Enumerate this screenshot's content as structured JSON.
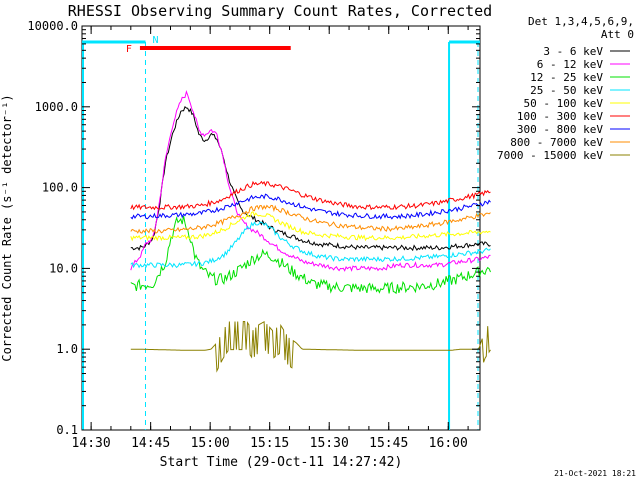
{
  "chart_data": {
    "type": "line",
    "title": "RHESSI Observing Summary Count Rates, Corrected",
    "xlabel": "Start Time (29-Oct-11 14:27:42)",
    "ylabel": "Corrected Count Rate (s⁻¹ detector⁻¹)",
    "y_scale": "log",
    "ylim": [
      0.1,
      10000
    ],
    "xlim": [
      "14:27:42",
      "16:08:00"
    ],
    "x_ticks": [
      "14:30",
      "14:45",
      "15:00",
      "15:15",
      "15:30",
      "15:45",
      "16:00"
    ],
    "x_tick_minutes": [
      2.3,
      17.3,
      32.3,
      47.3,
      62.3,
      77.3,
      92.3
    ],
    "y_tick_values": [
      0.1,
      1,
      10,
      100,
      1000,
      10000
    ],
    "y_ticks": [
      "0.1",
      "1.0",
      "10.0",
      "100.0",
      "1000.0",
      "10000.0"
    ],
    "legend_header": [
      "Det 1,3,4,5,6,9,",
      "Att 0"
    ],
    "legend_position": "right",
    "grid": false,
    "x_unit_note": "x values are minutes after 14:27:42",
    "flags": {
      "flare_label": "F",
      "flare_span": [
        14.6,
        52.6
      ],
      "flare_color": "#ff0000",
      "night_label": "N",
      "night_spans": [
        [
          0.0,
          16.0
        ],
        [
          92.5,
          108.5
        ]
      ],
      "night_color": "#00e5ff",
      "saa_dashed_lines": [
        16.0,
        108.5
      ]
    },
    "series": [
      {
        "name": "3 - 6 keV",
        "color": "#000000",
        "x": [
          12.3,
          13.5,
          14.6,
          16.0,
          18.0,
          19.5,
          21.0,
          23.0,
          25.0,
          26.5,
          28.0,
          29.5,
          31.0,
          32.5,
          34.0,
          35.5,
          37.0,
          38.5,
          40.0,
          42.0,
          44.0,
          47.0,
          50.0,
          53.0,
          56.0,
          60.0,
          65.0,
          70.0,
          75.0,
          80.0,
          85.0,
          90.0,
          95.0,
          100.0,
          103.0
        ],
        "y": [
          18,
          18,
          18,
          19,
          24,
          60,
          200,
          500,
          900,
          1000,
          800,
          450,
          380,
          460,
          400,
          250,
          130,
          80,
          55,
          45,
          40,
          33,
          28,
          25,
          22,
          20,
          19,
          18,
          18,
          18,
          18,
          18,
          19,
          20,
          20
        ]
      },
      {
        "name": "6 - 12 keV",
        "color": "#ff00ff",
        "x": [
          12.3,
          14.0,
          15.0,
          16.0,
          18.0,
          19.5,
          21.0,
          23.0,
          25.0,
          26.5,
          28.0,
          29.5,
          31.0,
          32.5,
          34.0,
          35.5,
          37.0,
          38.5,
          40.0,
          42.0,
          44.0,
          46.0,
          48.0,
          50.0,
          53.0,
          56.0,
          60.0,
          65.0,
          70.0,
          75.0,
          80.0,
          85.0,
          90.0,
          95.0,
          100.0,
          103.0
        ],
        "y": [
          10,
          13,
          15,
          20,
          24,
          65,
          220,
          650,
          1200,
          1500,
          900,
          500,
          450,
          520,
          460,
          250,
          110,
          60,
          40,
          32,
          28,
          24,
          20,
          17,
          14,
          12,
          11,
          10,
          10,
          10,
          11,
          11,
          11,
          12,
          13,
          14
        ]
      },
      {
        "name": "12 - 25 keV",
        "color": "#00e000",
        "x": [
          12.3,
          15.0,
          18.0,
          19.5,
          21.0,
          22.5,
          24.0,
          25.5,
          27.0,
          28.5,
          30.0,
          32.0,
          34.0,
          36.0,
          38.0,
          40.0,
          42.0,
          44.0,
          46.0,
          48.0,
          50.0,
          52.0,
          54.0,
          56.0,
          58.0,
          62.0,
          66.0,
          70.0,
          75.0,
          80.0,
          85.0,
          90.0,
          95.0,
          100.0,
          103.0
        ],
        "y": [
          6,
          6.2,
          6.5,
          9,
          12,
          25,
          38,
          40,
          28,
          14,
          10,
          8,
          7.2,
          7.5,
          8.5,
          10,
          12,
          14,
          15,
          14,
          12,
          10,
          8.5,
          7.5,
          6.5,
          6,
          5.8,
          5.7,
          5.6,
          5.8,
          6,
          6.5,
          7.5,
          9,
          10
        ]
      },
      {
        "name": "25 - 50 keV",
        "color": "#00e5ff",
        "x": [
          12.3,
          16.0,
          20.0,
          25.0,
          30.0,
          33.0,
          36.0,
          38.0,
          40.0,
          42.0,
          44.0,
          46.0,
          48.0,
          50.0,
          53.0,
          56.0,
          60.0,
          65.0,
          70.0,
          75.0,
          80.0,
          85.0,
          90.0,
          95.0,
          100.0,
          103.0
        ],
        "y": [
          11,
          11,
          11,
          11,
          11.5,
          12.5,
          15,
          19,
          25,
          33,
          37,
          35,
          30,
          24,
          19,
          16,
          14,
          13,
          13,
          13,
          13.2,
          13.5,
          14,
          15,
          16,
          17
        ]
      },
      {
        "name": "50 - 100 keV",
        "color": "#ffff00",
        "x": [
          12.3,
          16.0,
          20.0,
          25.0,
          30.0,
          33.0,
          36.0,
          39.0,
          42.0,
          44.0,
          46.0,
          48.0,
          50.0,
          53.0,
          56.0,
          60.0,
          65.0,
          70.0,
          75.0,
          80.0,
          85.0,
          90.0,
          95.0,
          100.0,
          103.0
        ],
        "y": [
          24,
          24,
          24,
          24,
          25,
          27,
          31,
          38,
          46,
          48,
          46,
          42,
          37,
          32,
          28,
          26,
          25,
          24,
          24,
          24,
          25,
          26,
          27,
          28,
          29
        ]
      },
      {
        "name": "100 - 300 keV",
        "color": "#ff0000",
        "x": [
          12.3,
          16.0,
          20.0,
          25.0,
          30.0,
          35.0,
          40.0,
          43.0,
          46.0,
          49.0,
          52.0,
          56.0,
          60.0,
          65.0,
          70.0,
          75.0,
          80.0,
          85.0,
          90.0,
          95.0,
          100.0,
          103.0
        ],
        "y": [
          57,
          57,
          57,
          58,
          60,
          70,
          95,
          110,
          112,
          106,
          95,
          80,
          70,
          62,
          58,
          57,
          58,
          60,
          65,
          73,
          82,
          90
        ]
      },
      {
        "name": "300 - 800 keV",
        "color": "#0000ff",
        "x": [
          12.3,
          16.0,
          20.0,
          25.0,
          30.0,
          35.0,
          40.0,
          43.0,
          46.0,
          49.0,
          52.0,
          56.0,
          60.0,
          65.0,
          70.0,
          75.0,
          80.0,
          85.0,
          90.0,
          95.0,
          100.0,
          103.0
        ],
        "y": [
          44,
          44,
          45,
          46,
          48,
          55,
          67,
          75,
          78,
          74,
          66,
          57,
          51,
          47,
          45,
          44,
          44,
          46,
          50,
          55,
          62,
          68
        ]
      },
      {
        "name": "800 - 7000 keV",
        "color": "#ff8c00",
        "x": [
          12.3,
          16.0,
          20.0,
          25.0,
          30.0,
          35.0,
          40.0,
          43.0,
          46.0,
          49.0,
          52.0,
          56.0,
          60.0,
          65.0,
          70.0,
          75.0,
          80.0,
          85.0,
          90.0,
          95.0,
          100.0,
          103.0
        ],
        "y": [
          29,
          29,
          29,
          30,
          32,
          37,
          47,
          55,
          58,
          55,
          49,
          42,
          37,
          34,
          32,
          31,
          31,
          33,
          36,
          40,
          45,
          48
        ]
      },
      {
        "name": "7000 - 15000 keV",
        "color": "#8b8000",
        "x": [
          12.3,
          14.0,
          26.0,
          27.5,
          29.0,
          31.0,
          32.5,
          34.0,
          35.5,
          37.0,
          38.5,
          40.0,
          41.5,
          43.0,
          44.5,
          46.0,
          48.0,
          50.0,
          52.0,
          54.0,
          55.5,
          70.0,
          88.0,
          93.0,
          95.5,
          97.0,
          98.5,
          100.0,
          101.5,
          103.0
        ],
        "y": [
          1,
          1,
          0.97,
          0.97,
          0.97,
          0.97,
          1.0,
          1.2,
          1.7,
          2.2,
          2.2,
          2.2,
          2.2,
          1.7,
          2.0,
          2.2,
          1.7,
          2.0,
          1.4,
          1.2,
          1.0,
          0.97,
          0.97,
          0.97,
          1.0,
          1.0,
          1.0,
          1.0,
          1.7,
          2.2
        ]
      }
    ]
  },
  "footer": {
    "timestamp": "21-Oct-2021 18:21"
  }
}
